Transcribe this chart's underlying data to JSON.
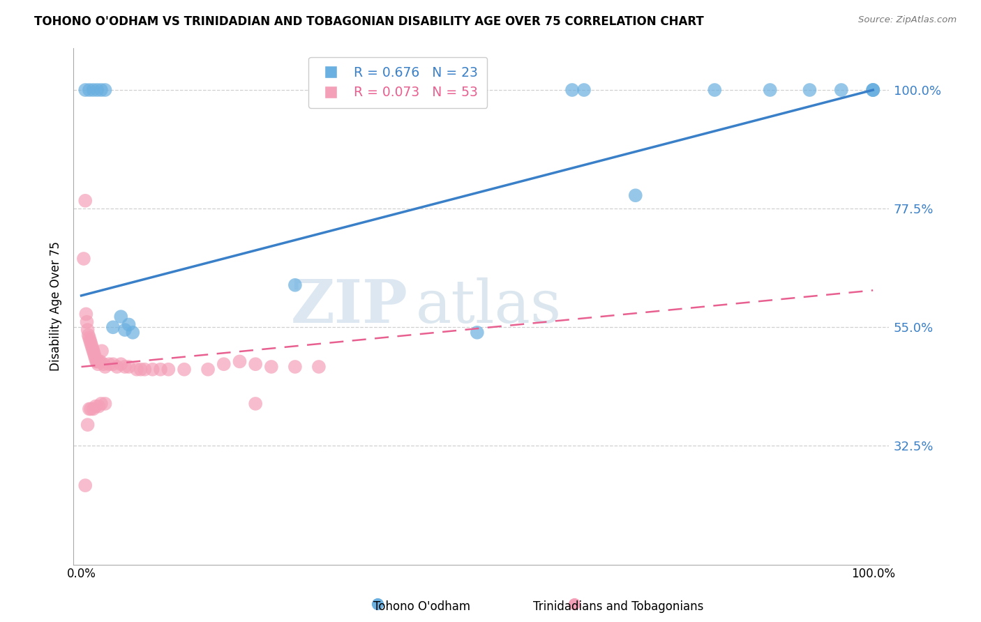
{
  "title": "TOHONO O'ODHAM VS TRINIDADIAN AND TOBAGONIAN DISABILITY AGE OVER 75 CORRELATION CHART",
  "source": "Source: ZipAtlas.com",
  "ylabel": "Disability Age Over 75",
  "legend_label_blue": "Tohono O'odham",
  "legend_label_pink": "Trinidadians and Tobagonians",
  "R_blue": 0.676,
  "N_blue": 23,
  "R_pink": 0.073,
  "N_pink": 53,
  "blue_color": "#6ab0e0",
  "pink_color": "#f4a0b8",
  "blue_line_color": "#3a80c8",
  "pink_line_color": "#e86090",
  "watermark_zip": "ZIP",
  "watermark_atlas": "atlas",
  "ytick_vals": [
    32.5,
    55.0,
    77.5,
    100.0
  ],
  "blue_x": [
    0.5,
    1.0,
    1.5,
    2.0,
    2.5,
    3.0,
    4.0,
    5.0,
    5.5,
    6.0,
    6.5,
    27.0,
    50.0,
    62.0,
    63.5,
    70.0,
    80.0,
    87.0,
    92.0,
    96.0,
    100.0,
    100.0,
    100.0
  ],
  "blue_y": [
    100.0,
    100.0,
    100.0,
    100.0,
    100.0,
    100.0,
    55.0,
    57.0,
    54.5,
    55.5,
    54.0,
    63.0,
    54.0,
    100.0,
    100.0,
    80.0,
    100.0,
    100.0,
    100.0,
    100.0,
    100.0,
    100.0,
    100.0
  ],
  "pink_x": [
    0.3,
    0.5,
    0.6,
    0.7,
    0.8,
    0.9,
    1.0,
    1.1,
    1.2,
    1.3,
    1.4,
    1.5,
    1.6,
    1.7,
    1.8,
    1.9,
    2.0,
    2.1,
    2.2,
    2.4,
    2.6,
    2.8,
    3.0,
    3.5,
    4.0,
    4.5,
    5.0,
    5.5,
    6.0,
    7.0,
    7.5,
    8.0,
    9.0,
    10.0,
    11.0,
    13.0,
    16.0,
    18.0,
    20.0,
    22.0,
    24.0,
    27.0,
    30.0,
    22.0,
    3.0,
    2.5,
    2.2,
    1.8,
    1.5,
    1.2,
    1.0,
    0.8,
    0.5
  ],
  "pink_y": [
    68.0,
    79.0,
    57.5,
    56.0,
    54.5,
    53.5,
    53.0,
    52.5,
    52.0,
    51.5,
    51.0,
    50.5,
    50.0,
    49.5,
    49.0,
    48.5,
    48.5,
    48.0,
    48.5,
    48.5,
    50.5,
    48.0,
    47.5,
    48.0,
    48.0,
    47.5,
    48.0,
    47.5,
    47.5,
    47.0,
    47.0,
    47.0,
    47.0,
    47.0,
    47.0,
    47.0,
    47.0,
    48.0,
    48.5,
    48.0,
    47.5,
    47.5,
    47.5,
    40.5,
    40.5,
    40.5,
    40.0,
    40.0,
    39.5,
    39.5,
    39.5,
    36.5,
    25.0
  ],
  "blue_line_x0": 0.0,
  "blue_line_y0": 61.0,
  "blue_line_x1": 100.0,
  "blue_line_y1": 100.0,
  "pink_line_x0": 0.0,
  "pink_line_y0": 47.5,
  "pink_line_x1": 100.0,
  "pink_line_y1": 62.0,
  "xmin": 0.0,
  "xmax": 100.0,
  "ymin": 10.0,
  "ymax": 108.0
}
